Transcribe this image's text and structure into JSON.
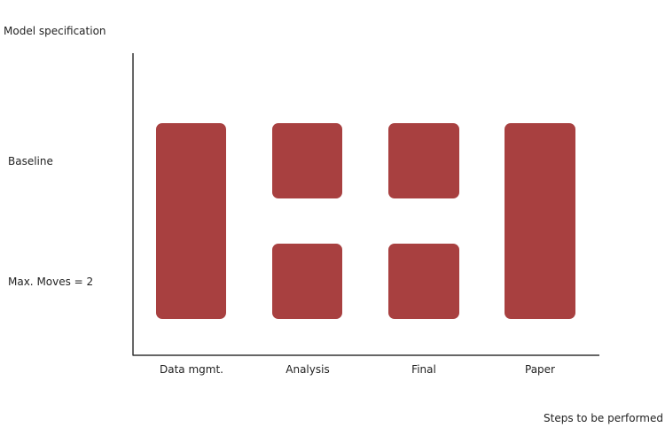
{
  "diagram": {
    "y_axis_title": "Model specification",
    "x_axis_title": "Steps to be performed",
    "rows": [
      "Baseline",
      "Max.  Moves = 2"
    ],
    "columns": [
      "Data mgmt.",
      "Analysis",
      "Final",
      "Paper"
    ],
    "cells": [
      {
        "column": "Data mgmt.",
        "rows": [
          "Baseline",
          "Max.  Moves = 2"
        ],
        "merged": true
      },
      {
        "column": "Analysis",
        "rows": [
          "Baseline"
        ],
        "merged": false
      },
      {
        "column": "Analysis",
        "rows": [
          "Max.  Moves = 2"
        ],
        "merged": false
      },
      {
        "column": "Final",
        "rows": [
          "Baseline"
        ],
        "merged": false
      },
      {
        "column": "Final",
        "rows": [
          "Max.  Moves = 2"
        ],
        "merged": false
      },
      {
        "column": "Paper",
        "rows": [
          "Baseline",
          "Max.  Moves = 2"
        ],
        "merged": true
      }
    ],
    "box_color": "#a84040",
    "axis_color": "#333333"
  }
}
